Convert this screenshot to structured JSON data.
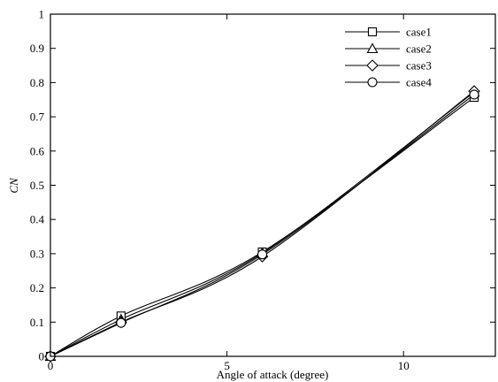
{
  "chart_data": {
    "type": "line",
    "title": "",
    "xlabel": "Angle of attack (degree)",
    "ylabel": "CN",
    "xlim": [
      0,
      12.6
    ],
    "ylim": [
      0,
      1
    ],
    "grid": false,
    "legend_position": "top-right",
    "x_ticks": [
      {
        "value": 0,
        "label": "0"
      },
      {
        "value": 5,
        "label": "5"
      },
      {
        "value": 10,
        "label": "10"
      }
    ],
    "y_ticks": [
      {
        "value": 0,
        "label": "0"
      },
      {
        "value": 0.1,
        "label": "0.1"
      },
      {
        "value": 0.2,
        "label": "0.2"
      },
      {
        "value": 0.3,
        "label": "0.3"
      },
      {
        "value": 0.4,
        "label": "0.4"
      },
      {
        "value": 0.5,
        "label": "0.5"
      },
      {
        "value": 0.6,
        "label": "0.6"
      },
      {
        "value": 0.7,
        "label": "0.7"
      },
      {
        "value": 0.8,
        "label": "0.8"
      },
      {
        "value": 0.9,
        "label": "0.9"
      },
      {
        "value": 1,
        "label": "1"
      }
    ],
    "series": [
      {
        "name": "case1",
        "marker": "square",
        "points": [
          {
            "x": 0,
            "y": 0
          },
          {
            "x": 2,
            "y": 0.118
          },
          {
            "x": 6,
            "y": 0.305
          },
          {
            "x": 12,
            "y": 0.757
          }
        ]
      },
      {
        "name": "case2",
        "marker": "triangle",
        "points": [
          {
            "x": 0,
            "y": 0
          },
          {
            "x": 2,
            "y": 0.108
          },
          {
            "x": 6,
            "y": 0.302
          },
          {
            "x": 12,
            "y": 0.772
          }
        ]
      },
      {
        "name": "case3",
        "marker": "diamond",
        "points": [
          {
            "x": 0,
            "y": 0
          },
          {
            "x": 2,
            "y": 0.1
          },
          {
            "x": 6,
            "y": 0.292
          },
          {
            "x": 12,
            "y": 0.775
          }
        ]
      },
      {
        "name": "case4",
        "marker": "circle",
        "points": [
          {
            "x": 0,
            "y": 0
          },
          {
            "x": 2,
            "y": 0.098
          },
          {
            "x": 6,
            "y": 0.298
          },
          {
            "x": 12,
            "y": 0.765
          }
        ]
      }
    ]
  }
}
